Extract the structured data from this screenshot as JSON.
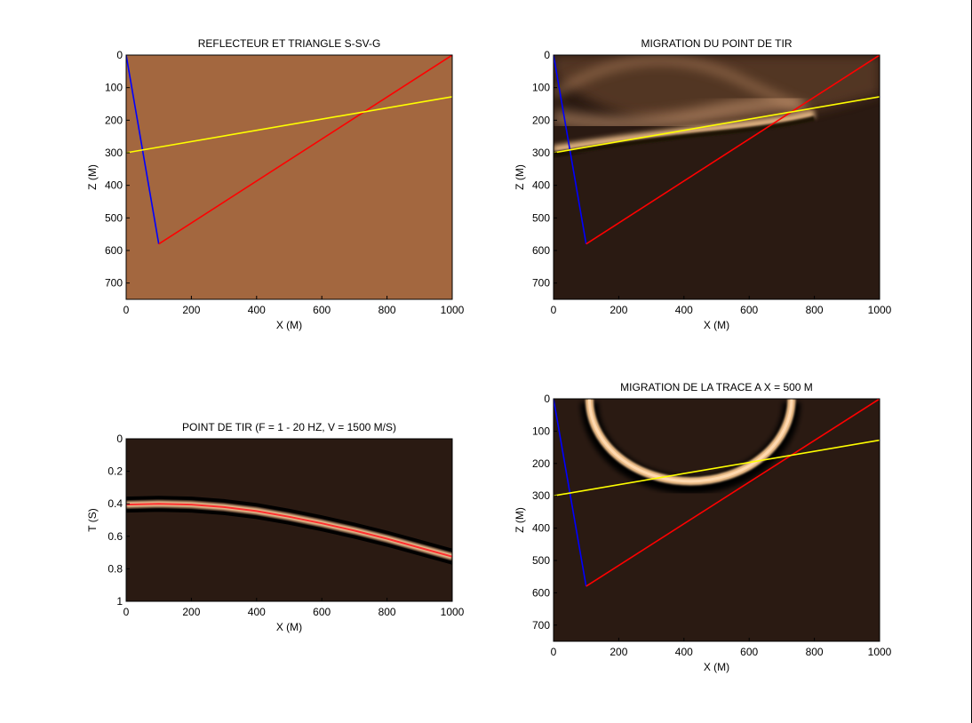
{
  "colors": {
    "plain": "#a3673f",
    "dark": "#2a1a12",
    "shot_line": "#0000ff",
    "reflect_line": "#ff0000",
    "reflector": "#ffff00",
    "band_bright": "#f0c08a",
    "trace_red": "#ff3030"
  },
  "chart_data": [
    {
      "id": "reflecteur",
      "type": "line",
      "title": "REFLECTEUR ET TRIANGLE S-SV-G",
      "xlabel": "X (M)",
      "ylabel": "Z (M)",
      "xlim": [
        0,
        1000
      ],
      "ylim": [
        750,
        0
      ],
      "xticks": [
        0,
        200,
        400,
        600,
        800,
        1000
      ],
      "yticks": [
        0,
        100,
        200,
        300,
        400,
        500,
        600,
        700
      ],
      "background": "plain",
      "series": [
        {
          "color": "#0000ff",
          "x": [
            0,
            100
          ],
          "y": [
            0,
            580
          ]
        },
        {
          "color": "#ff0000",
          "x": [
            100,
            1000
          ],
          "y": [
            580,
            0
          ]
        },
        {
          "color": "#ffff00",
          "x": [
            0,
            1000
          ],
          "y": [
            300,
            128
          ]
        }
      ]
    },
    {
      "id": "migration-point-tir",
      "type": "heatmap",
      "title": "MIGRATION DU POINT DE TIR",
      "xlabel": "X (M)",
      "ylabel": "Z (M)",
      "xlim": [
        0,
        1000
      ],
      "ylim": [
        750,
        0
      ],
      "xticks": [
        0,
        200,
        400,
        600,
        800,
        1000
      ],
      "yticks": [
        0,
        100,
        200,
        300,
        400,
        500,
        600,
        700
      ],
      "background": "dark",
      "series": [
        {
          "color": "#0000ff",
          "x": [
            0,
            100
          ],
          "y": [
            0,
            580
          ]
        },
        {
          "color": "#ff0000",
          "x": [
            100,
            1000
          ],
          "y": [
            580,
            0
          ]
        },
        {
          "color": "#ffff00",
          "x": [
            0,
            1000
          ],
          "y": [
            300,
            128
          ]
        }
      ]
    },
    {
      "id": "point-de-tir",
      "type": "heatmap",
      "title": "POINT DE TIR (F = 1 - 20 HZ, V = 1500 M/S)",
      "xlabel": "X (M)",
      "ylabel": "T (S)",
      "xlim": [
        0,
        1000
      ],
      "ylim": [
        1,
        0
      ],
      "xticks": [
        0,
        200,
        400,
        600,
        800,
        1000
      ],
      "yticks": [
        0,
        0.2,
        0.4,
        0.6,
        0.8,
        1
      ],
      "background": "dark",
      "arrival": {
        "x": [
          0,
          100,
          200,
          300,
          400,
          500,
          600,
          700,
          800,
          900,
          1000
        ],
        "t": [
          0.405,
          0.4,
          0.405,
          0.42,
          0.445,
          0.48,
          0.52,
          0.565,
          0.615,
          0.67,
          0.725
        ]
      }
    },
    {
      "id": "migration-trace",
      "type": "heatmap",
      "title": "MIGRATION DE LA TRACE A X = 500 M",
      "xlabel": "X (M)",
      "ylabel": "Z (M)",
      "xlim": [
        0,
        1000
      ],
      "ylim": [
        750,
        0
      ],
      "xticks": [
        0,
        200,
        400,
        600,
        800,
        1000
      ],
      "yticks": [
        0,
        100,
        200,
        300,
        400,
        500,
        600,
        700
      ],
      "background": "dark",
      "series": [
        {
          "color": "#0000ff",
          "x": [
            0,
            100
          ],
          "y": [
            0,
            580
          ]
        },
        {
          "color": "#ff0000",
          "x": [
            100,
            1000
          ],
          "y": [
            580,
            0
          ]
        },
        {
          "color": "#ffff00",
          "x": [
            0,
            1000
          ],
          "y": [
            300,
            128
          ]
        }
      ]
    }
  ]
}
